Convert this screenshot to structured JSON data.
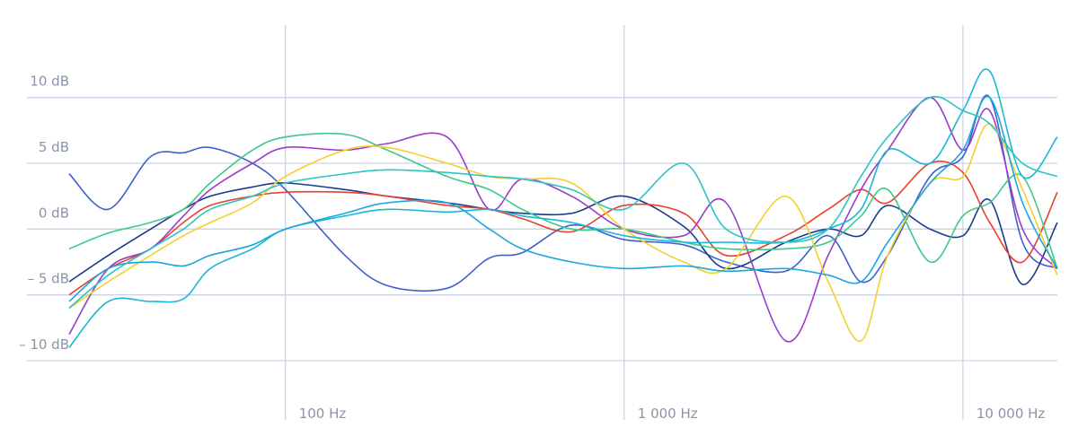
{
  "chart_data": {
    "type": "line",
    "xscale": "log",
    "grid": true,
    "xlim": [
      23,
      19000
    ],
    "ylim": [
      -14.5,
      15.5
    ],
    "xticks": [
      {
        "value": 100,
        "label": "100 Hz"
      },
      {
        "value": 1000,
        "label": "1 000 Hz"
      },
      {
        "value": 10000,
        "label": "10 000 Hz"
      }
    ],
    "yticks": [
      {
        "value": 10,
        "label": "10 dB"
      },
      {
        "value": 5,
        "label": "5 dB"
      },
      {
        "value": 0,
        "label": "0 dB"
      },
      {
        "value": -5,
        "label": "– 5 dB"
      },
      {
        "value": -10,
        "label": "– 10 dB"
      }
    ],
    "x": [
      23,
      30,
      40,
      50,
      60,
      80,
      100,
      150,
      200,
      300,
      400,
      500,
      700,
      1000,
      1500,
      2000,
      3000,
      4000,
      5000,
      6000,
      8000,
      10000,
      12000,
      15000,
      19000
    ],
    "series": [
      {
        "color": "#3f5fcc",
        "values": [
          4.2,
          1.5,
          5.5,
          5.8,
          6.2,
          5,
          3,
          -2,
          -4.3,
          -4.5,
          -2.2,
          -1.8,
          0.3,
          -0.8,
          -1.2,
          -2.5,
          -3.2,
          -0.5,
          -4,
          -2,
          4,
          5.5,
          10,
          -1,
          -3
        ]
      },
      {
        "color": "#1a3a8c",
        "values": [
          -4,
          -2,
          0,
          1.5,
          2.5,
          3.2,
          3.5,
          3,
          2.5,
          2,
          1.5,
          1.2,
          1.2,
          2.5,
          0.2,
          -3,
          -1,
          0,
          -0.5,
          1.8,
          0,
          -0.5,
          2.2,
          -4.2,
          0.5
        ]
      },
      {
        "color": "#e8412c",
        "values": [
          -5,
          -3,
          -1.5,
          0.5,
          1.8,
          2.5,
          2.8,
          2.8,
          2.5,
          1.8,
          1.5,
          0.8,
          -0.2,
          1.8,
          1.2,
          -2,
          -0.5,
          1.5,
          3,
          2,
          5,
          4.3,
          0.5,
          -2.5,
          2.8
        ]
      },
      {
        "color": "#9b3cc8",
        "values": [
          -8,
          -3,
          -1.5,
          1,
          3,
          5,
          6.2,
          6,
          6.5,
          7,
          1.5,
          3.8,
          2.5,
          0,
          -0.5,
          2,
          -8.5,
          -2,
          3,
          6,
          10,
          6,
          9,
          0,
          -3
        ]
      },
      {
        "color": "#3cc98a",
        "values": [
          -1.5,
          -0.3,
          0.5,
          1.5,
          3.5,
          6,
          7,
          7.2,
          6,
          4,
          3,
          1.5,
          0,
          0,
          -1,
          -1.5,
          -1.5,
          -1,
          1,
          3,
          -2.5,
          1,
          2,
          4,
          -3
        ]
      },
      {
        "color": "#f5cf2f",
        "values": [
          -6,
          -4,
          -2,
          -0.5,
          0.5,
          2,
          4,
          6,
          6.2,
          5,
          4,
          3.8,
          3.5,
          0,
          -2.5,
          -3,
          2.5,
          -4,
          -8.5,
          -2,
          3.5,
          4,
          8,
          3,
          -3.5
        ]
      },
      {
        "color": "#1ab6d8",
        "values": [
          -9,
          -5.5,
          -5.5,
          -5.3,
          -3,
          -1.5,
          0,
          1,
          1.5,
          1.3,
          1.5,
          1,
          0.5,
          -0.5,
          -1,
          -1,
          -1,
          0,
          1.5,
          6,
          5,
          9,
          12,
          4,
          7
        ]
      },
      {
        "color": "#18a7e0",
        "values": [
          -5.5,
          -3,
          -2.5,
          -2.8,
          -2,
          -1.2,
          0,
          1.2,
          2,
          2,
          0,
          -1.5,
          -2.5,
          -3,
          -2.8,
          -3.2,
          -3,
          -3.5,
          -4,
          -1,
          3.5,
          6,
          10,
          2,
          -3
        ]
      },
      {
        "color": "#2cc4c4",
        "values": [
          -6,
          -3.5,
          -1.5,
          0,
          1.5,
          2.5,
          3.5,
          4.2,
          4.5,
          4.3,
          4,
          3.8,
          3,
          1.5,
          5,
          0,
          -1,
          0,
          4,
          7,
          10,
          9,
          8,
          5,
          4
        ]
      }
    ]
  }
}
